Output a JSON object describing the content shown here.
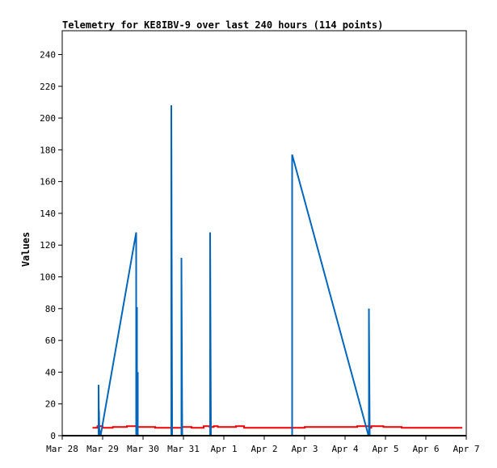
{
  "chart_data": {
    "type": "line",
    "title": "Telemetry for KE8IBV-9 over last 240 hours (114 points)",
    "xlabel": "",
    "ylabel": "Values",
    "x_tick_labels": [
      "Mar 28",
      "Mar 29",
      "Mar 30",
      "Mar 31",
      "Apr 1",
      "Apr 2",
      "Apr 3",
      "Apr 4",
      "Apr 5",
      "Apr 6",
      "Apr 7"
    ],
    "x_unit": "days",
    "xlim": [
      0,
      10
    ],
    "ylim": [
      0,
      255
    ],
    "y_ticks": [
      0,
      20,
      40,
      60,
      80,
      100,
      120,
      140,
      160,
      180,
      200,
      220,
      240
    ],
    "grid": false,
    "series": [
      {
        "color": "#0066bb",
        "x": [
          0.9,
          0.9,
          0.91,
          0.91,
          0.92,
          0.92,
          0.95,
          1.83,
          1.83,
          1.85,
          1.85,
          1.87,
          1.87,
          1.88,
          2.7,
          2.7,
          2.72,
          2.95,
          2.95,
          2.97,
          3.66,
          3.66,
          3.68,
          5.69,
          5.69,
          7.58,
          7.59,
          7.59,
          7.61
        ],
        "y": [
          0,
          32,
          0,
          16,
          0,
          4,
          0,
          128,
          0,
          81,
          0,
          40,
          0,
          0,
          0,
          208,
          0,
          0,
          112,
          0,
          0,
          128,
          0,
          0,
          177,
          0,
          0,
          80,
          0
        ]
      },
      {
        "color": "#ee0000",
        "x": [
          0.75,
          0.87,
          0.87,
          1.0,
          1.0,
          1.25,
          1.25,
          1.6,
          1.6,
          1.85,
          1.85,
          2.3,
          2.3,
          2.95,
          2.95,
          3.2,
          3.2,
          3.5,
          3.5,
          3.65,
          3.65,
          3.75,
          3.75,
          3.85,
          3.85,
          4.3,
          4.3,
          4.5,
          4.5,
          4.7,
          4.7,
          6.0,
          6.0,
          7.3,
          7.3,
          7.6,
          7.6,
          7.65,
          7.65,
          7.75,
          7.75,
          7.95,
          7.95,
          8.4,
          8.4,
          9.9
        ],
        "y": [
          5,
          5,
          6,
          6,
          5,
          5,
          5.5,
          5.5,
          6,
          6,
          5.5,
          5.5,
          5,
          5,
          5.5,
          5.5,
          5,
          5,
          6,
          6,
          5.5,
          5.5,
          6,
          6,
          5.5,
          5.5,
          6,
          6,
          5,
          5,
          5,
          5,
          5.5,
          5.5,
          6,
          6,
          5,
          5,
          6,
          6,
          6,
          6,
          5.5,
          5.5,
          5,
          5
        ]
      }
    ]
  }
}
